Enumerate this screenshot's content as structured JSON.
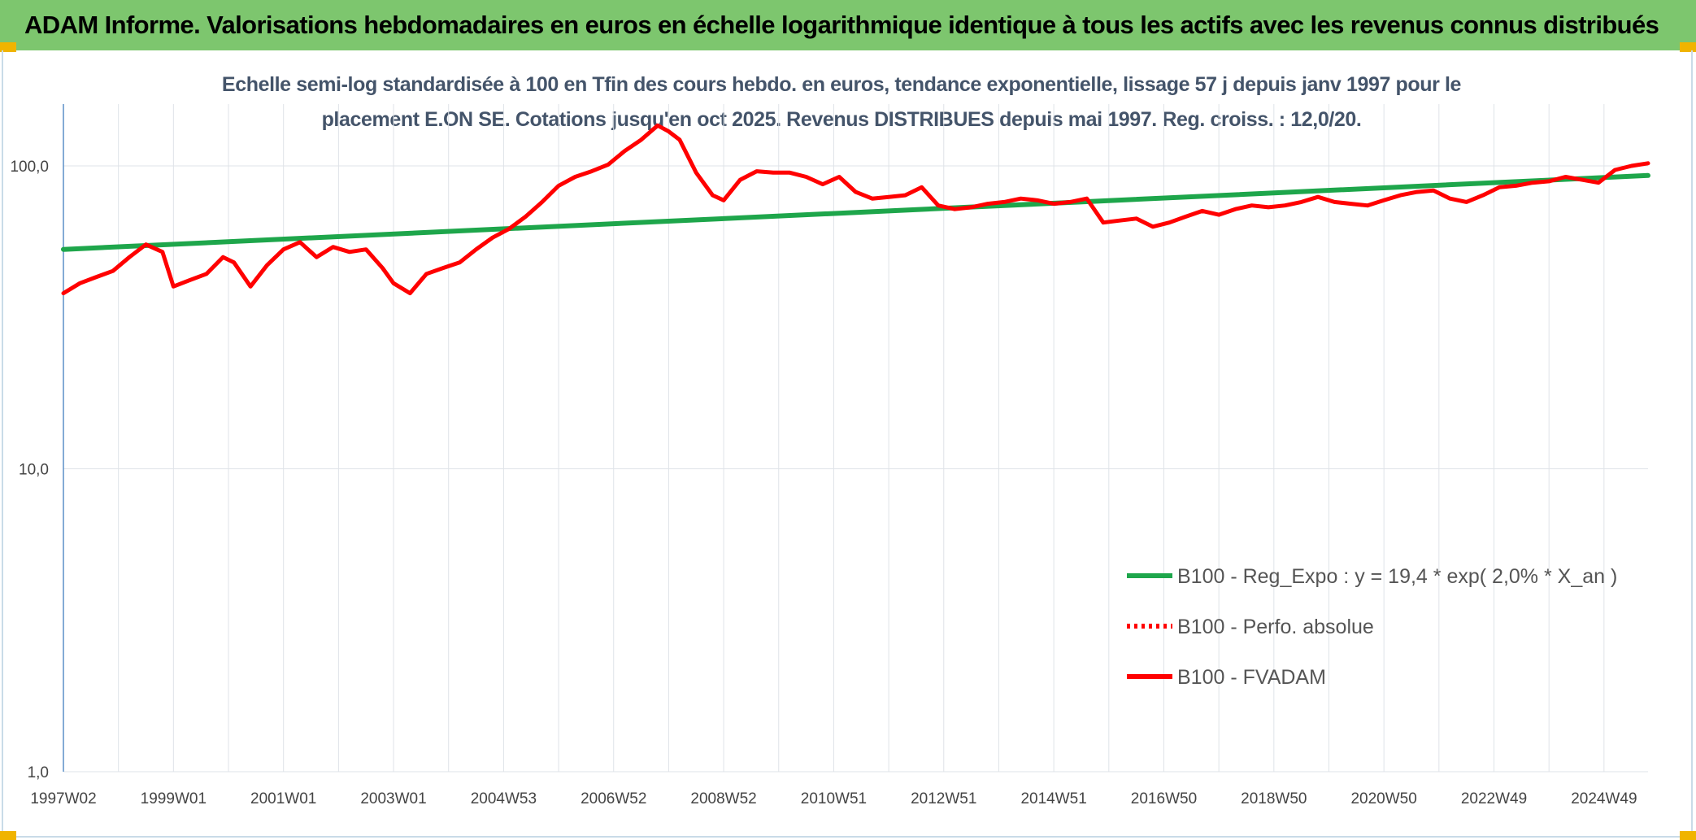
{
  "banner_title": "ADAM Informe. Valorisations hebdomadaires en euros en échelle logarithmique identique à tous les actifs avec les revenus connus distribués",
  "chart_data": {
    "type": "line",
    "title_line1": "Echelle semi-log standardisée à 100 en Tfin des cours hebdo. en euros, tendance exponentielle, lissage 57 j depuis janv 1997 pour le",
    "title_line2": "placement E.ON SE. Cotations jusqu'en oct 2025. Revenus DISTRIBUES depuis mai 1997. Reg. croiss. : 12,0/20.",
    "y_scale": "log",
    "ylim": [
      1,
      160
    ],
    "xlim": [
      1997.0,
      2025.8
    ],
    "grid": true,
    "legend_position": "right",
    "y_ticks": [
      {
        "value": 1,
        "label": "1,0"
      },
      {
        "value": 10,
        "label": "10,0"
      },
      {
        "value": 100,
        "label": "100,0"
      }
    ],
    "x_ticks": [
      {
        "value": 1997.0,
        "label": "1997W02"
      },
      {
        "value": 1999.0,
        "label": "1999W01"
      },
      {
        "value": 2001.0,
        "label": "2001W01"
      },
      {
        "value": 2003.0,
        "label": "2003W01"
      },
      {
        "value": 2005.0,
        "label": "2004W53"
      },
      {
        "value": 2007.0,
        "label": "2006W52"
      },
      {
        "value": 2009.0,
        "label": "2008W52"
      },
      {
        "value": 2011.0,
        "label": "2010W51"
      },
      {
        "value": 2013.0,
        "label": "2012W51"
      },
      {
        "value": 2015.0,
        "label": "2014W51"
      },
      {
        "value": 2017.0,
        "label": "2016W50"
      },
      {
        "value": 2019.0,
        "label": "2018W50"
      },
      {
        "value": 2021.0,
        "label": "2020W50"
      },
      {
        "value": 2023.0,
        "label": "2022W49"
      },
      {
        "value": 2025.0,
        "label": "2024W49"
      }
    ],
    "series": [
      {
        "name": "B100 - Reg_Expo : y = 19,4 * exp( 2,0% *  X_an )",
        "color": "#1ea64b",
        "style": "solid",
        "x": [
          1997.0,
          2025.8
        ],
        "y": [
          53,
          93
        ]
      },
      {
        "name": "B100 - Perfo. absolue",
        "color": "#ff0000",
        "style": "dotted",
        "x": [],
        "y": []
      },
      {
        "name": "B100 - FVADAM",
        "color": "#ff0000",
        "style": "solid",
        "x": [
          1997.0,
          1997.3,
          1997.6,
          1997.9,
          1998.2,
          1998.5,
          1998.8,
          1999.0,
          1999.3,
          1999.6,
          1999.9,
          2000.1,
          2000.4,
          2000.7,
          2001.0,
          2001.3,
          2001.6,
          2001.9,
          2002.2,
          2002.5,
          2002.8,
          2003.0,
          2003.3,
          2003.6,
          2003.9,
          2004.2,
          2004.5,
          2004.8,
          2005.1,
          2005.4,
          2005.7,
          2006.0,
          2006.3,
          2006.6,
          2006.9,
          2007.2,
          2007.5,
          2007.8,
          2008.0,
          2008.2,
          2008.5,
          2008.8,
          2009.0,
          2009.3,
          2009.6,
          2009.9,
          2010.2,
          2010.5,
          2010.8,
          2011.1,
          2011.4,
          2011.7,
          2012.0,
          2012.3,
          2012.6,
          2012.9,
          2013.2,
          2013.5,
          2013.8,
          2014.1,
          2014.4,
          2014.7,
          2015.0,
          2015.3,
          2015.6,
          2015.9,
          2016.2,
          2016.5,
          2016.8,
          2017.1,
          2017.4,
          2017.7,
          2018.0,
          2018.3,
          2018.6,
          2018.9,
          2019.2,
          2019.5,
          2019.8,
          2020.1,
          2020.4,
          2020.7,
          2021.0,
          2021.3,
          2021.6,
          2021.9,
          2022.2,
          2022.5,
          2022.8,
          2023.1,
          2023.4,
          2023.7,
          2024.0,
          2024.3,
          2024.6,
          2024.9,
          2025.2,
          2025.5,
          2025.8
        ],
        "y": [
          38,
          41,
          43,
          45,
          50,
          55,
          52,
          40,
          42,
          44,
          50,
          48,
          40,
          47,
          53,
          56,
          50,
          54,
          52,
          53,
          46,
          41,
          38,
          44,
          46,
          48,
          53,
          58,
          62,
          68,
          76,
          86,
          92,
          96,
          101,
          112,
          122,
          136,
          130,
          122,
          95,
          80,
          77,
          90,
          96,
          95,
          95,
          92,
          87,
          92,
          82,
          78,
          79,
          80,
          85,
          74,
          72,
          73,
          75,
          76,
          78,
          77,
          75,
          76,
          78,
          65,
          66,
          67,
          63,
          65,
          68,
          71,
          69,
          72,
          74,
          73,
          74,
          76,
          79,
          76,
          75,
          74,
          77,
          80,
          82,
          83,
          78,
          76,
          80,
          85,
          86,
          88,
          89,
          92,
          90,
          88,
          97,
          100,
          102
        ]
      }
    ]
  }
}
